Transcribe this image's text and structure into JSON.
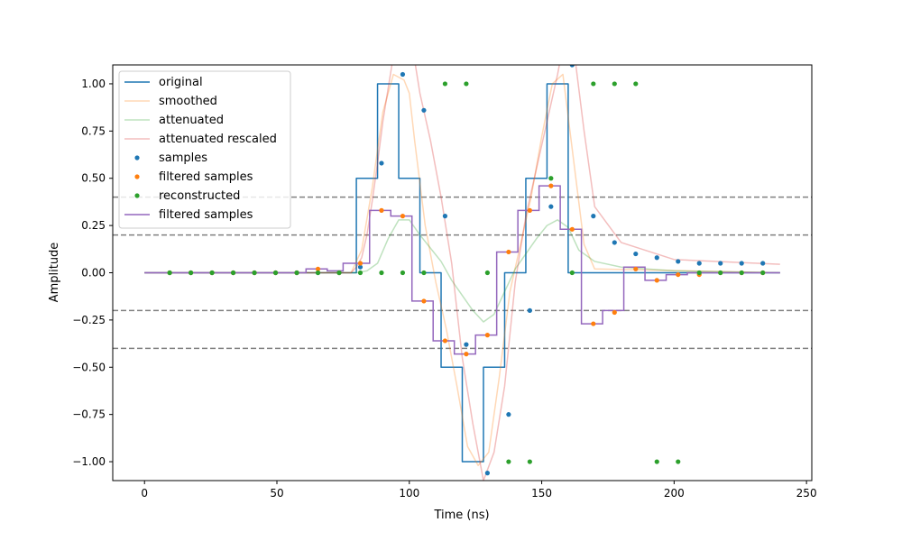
{
  "chart_data": {
    "type": "line",
    "title": "",
    "xlabel": "Time (ns)",
    "ylabel": "Amplitude",
    "xlim": [
      -12,
      252
    ],
    "ylim": [
      -1.1,
      1.1
    ],
    "xticks": [
      0,
      50,
      100,
      150,
      200,
      250
    ],
    "yticks": [
      -1.0,
      -0.75,
      -0.5,
      -0.25,
      0.0,
      0.25,
      0.5,
      0.75,
      1.0
    ],
    "xtick_labels": [
      "0",
      "50",
      "100",
      "150",
      "200",
      "250"
    ],
    "ytick_labels": [
      "−1.00",
      "−0.75",
      "−0.50",
      "−0.25",
      "0.00",
      "0.25",
      "0.50",
      "0.75",
      "1.00"
    ],
    "grid": false,
    "legend_position": "upper-left",
    "threshold_lines": [
      0.4,
      0.2,
      -0.2,
      -0.4
    ],
    "threshold_color": "#808080",
    "series": [
      {
        "name": "original",
        "kind": "step",
        "color": "#1f77b4",
        "x": [
          0,
          80,
          80,
          88,
          88,
          96,
          96,
          104,
          104,
          112,
          112,
          120,
          120,
          128,
          128,
          136,
          136,
          144,
          144,
          152,
          152,
          160,
          160,
          240
        ],
        "y": [
          0,
          0,
          0.5,
          0.5,
          1,
          1,
          0.5,
          0.5,
          0,
          0,
          -0.5,
          -0.5,
          -1,
          -1,
          -0.5,
          -0.5,
          0,
          0,
          0.5,
          0.5,
          1,
          1,
          0,
          0
        ]
      },
      {
        "name": "smoothed",
        "kind": "line",
        "color": "#ff7f0e",
        "opacity": 0.3,
        "x": [
          0,
          78,
          82,
          86,
          90,
          94,
          98,
          100,
          102,
          106,
          110,
          114,
          118,
          122,
          126,
          130,
          134,
          138,
          142,
          146,
          150,
          154,
          158,
          162,
          166,
          170,
          240
        ],
        "y": [
          0,
          0,
          0.12,
          0.45,
          0.85,
          1.05,
          1.02,
          0.95,
          0.7,
          0.25,
          -0.05,
          -0.3,
          -0.6,
          -0.92,
          -1.02,
          -0.95,
          -0.55,
          -0.1,
          0.15,
          0.4,
          0.72,
          1.0,
          1.05,
          0.6,
          0.15,
          0.02,
          0
        ]
      },
      {
        "name": "attenuated",
        "kind": "line",
        "color": "#2ca02c",
        "opacity": 0.3,
        "x": [
          0,
          80,
          84,
          88,
          92,
          96,
          100,
          104,
          108,
          112,
          116,
          120,
          124,
          128,
          132,
          136,
          140,
          144,
          148,
          152,
          156,
          160,
          164,
          170,
          180,
          200,
          240
        ],
        "y": [
          0,
          0,
          0.01,
          0.05,
          0.18,
          0.28,
          0.28,
          0.2,
          0.13,
          0.06,
          -0.04,
          -0.12,
          -0.2,
          -0.26,
          -0.22,
          -0.1,
          0.02,
          0.1,
          0.18,
          0.25,
          0.28,
          0.24,
          0.12,
          0.06,
          0.03,
          0.01,
          0
        ]
      },
      {
        "name": "attenuated rescaled",
        "kind": "line",
        "color": "#d62728",
        "opacity": 0.3,
        "x": [
          0,
          78,
          80,
          82,
          84,
          86,
          88,
          90,
          94,
          96,
          100,
          104,
          108,
          112,
          116,
          120,
          124,
          128,
          132,
          136,
          140,
          144,
          148,
          152,
          156,
          158,
          162,
          166,
          170,
          180,
          200,
          240
        ],
        "y": [
          0,
          0,
          0.03,
          0.08,
          0.2,
          0.38,
          0.58,
          0.8,
          1.15,
          1.3,
          1.3,
          0.95,
          0.7,
          0.4,
          0.05,
          -0.45,
          -0.8,
          -1.1,
          -0.95,
          -0.6,
          -0.05,
          0.3,
          0.55,
          0.8,
          1.05,
          1.2,
          1.2,
          0.75,
          0.35,
          0.16,
          0.07,
          0.045
        ]
      }
    ],
    "filtered_step": {
      "name": "filtered samples",
      "color": "#9467bd",
      "x": [
        0,
        61,
        61,
        69,
        69,
        75,
        75,
        78,
        78,
        81,
        81,
        85,
        85,
        93,
        93,
        101,
        101,
        109,
        109,
        117,
        117,
        125,
        125,
        133,
        133,
        141,
        141,
        149,
        149,
        157,
        157,
        165,
        165,
        173,
        173,
        181,
        181,
        189,
        189,
        197,
        197,
        205,
        205,
        213,
        213,
        240
      ],
      "y": [
        0,
        0,
        0.02,
        0.02,
        0.01,
        0.01,
        0.05,
        0.05,
        0.05,
        0.05,
        0.05,
        0.05,
        0.33,
        0.33,
        0.3,
        0.3,
        -0.15,
        -0.15,
        -0.36,
        -0.36,
        -0.43,
        -0.43,
        -0.33,
        -0.33,
        0.11,
        0.11,
        0.33,
        0.33,
        0.46,
        0.46,
        0.23,
        0.23,
        -0.27,
        -0.27,
        -0.2,
        -0.2,
        0.03,
        0.03,
        -0.04,
        -0.04,
        -0.01,
        -0.01,
        0,
        0,
        0,
        0
      ]
    },
    "scatter": [
      {
        "name": "samples",
        "color": "#1f77b4",
        "x": [
          9.5,
          17.5,
          25.5,
          33.5,
          41.5,
          49.5,
          57.5,
          65.5,
          73.5,
          81.5,
          89.5,
          97.5,
          105.5,
          113.5,
          121.5,
          129.5,
          137.5,
          145.5,
          153.5,
          161.5,
          169.5,
          177.5,
          185.5,
          193.5,
          201.5,
          209.5,
          217.5,
          225.5,
          233.5
        ],
        "y": [
          0,
          0,
          0,
          0,
          0,
          0,
          0,
          0,
          0,
          0.03,
          0.58,
          1.05,
          0.86,
          0.3,
          -0.38,
          -1.06,
          -0.75,
          -0.2,
          0.35,
          1.1,
          0.3,
          0.16,
          0.1,
          0.08,
          0.06,
          0.05,
          0.05,
          0.05,
          0.05
        ]
      },
      {
        "name": "filtered samples",
        "color": "#ff7f0e",
        "x": [
          9.5,
          17.5,
          25.5,
          33.5,
          41.5,
          49.5,
          57.5,
          65.5,
          73.5,
          81.5,
          89.5,
          97.5,
          105.5,
          113.5,
          121.5,
          129.5,
          137.5,
          145.5,
          153.5,
          161.5,
          169.5,
          177.5,
          185.5,
          193.5,
          201.5,
          209.5,
          217.5,
          225.5,
          233.5
        ],
        "y": [
          0,
          0,
          0,
          0,
          0,
          0,
          0,
          0.02,
          0,
          0.05,
          0.33,
          0.3,
          -0.15,
          -0.36,
          -0.43,
          -0.33,
          0.11,
          0.33,
          0.46,
          0.23,
          -0.27,
          -0.21,
          0.02,
          -0.04,
          -0.01,
          -0.01,
          0,
          0,
          0
        ]
      },
      {
        "name": "reconstructed",
        "color": "#2ca02c",
        "x": [
          9.5,
          17.5,
          25.5,
          33.5,
          41.5,
          49.5,
          57.5,
          65.5,
          73.5,
          81.5,
          89.5,
          97.5,
          105.5,
          113.5,
          121.5,
          129.5,
          137.5,
          145.5,
          153.5,
          161.5,
          169.5,
          177.5,
          185.5,
          193.5,
          201.5,
          209.5,
          217.5,
          225.5,
          233.5
        ],
        "y": [
          0,
          0,
          0,
          0,
          0,
          0,
          0,
          0,
          0,
          0,
          0,
          0,
          0,
          1,
          1,
          0,
          -1,
          -1,
          0.5,
          0,
          1,
          1,
          1,
          -1,
          -1,
          0,
          0,
          0,
          0
        ]
      }
    ],
    "legend_entries": [
      {
        "label": "original",
        "kind": "line",
        "color": "#1f77b4",
        "opacity": 1
      },
      {
        "label": "smoothed",
        "kind": "line",
        "color": "#ff7f0e",
        "opacity": 0.3
      },
      {
        "label": "attenuated",
        "kind": "line",
        "color": "#2ca02c",
        "opacity": 0.3
      },
      {
        "label": "attenuated rescaled",
        "kind": "line",
        "color": "#d62728",
        "opacity": 0.3
      },
      {
        "label": "samples",
        "kind": "dot",
        "color": "#1f77b4",
        "opacity": 1
      },
      {
        "label": "filtered samples",
        "kind": "dot",
        "color": "#ff7f0e",
        "opacity": 1
      },
      {
        "label": "reconstructed",
        "kind": "dot",
        "color": "#2ca02c",
        "opacity": 1
      },
      {
        "label": "filtered samples",
        "kind": "line",
        "color": "#9467bd",
        "opacity": 1
      }
    ]
  }
}
